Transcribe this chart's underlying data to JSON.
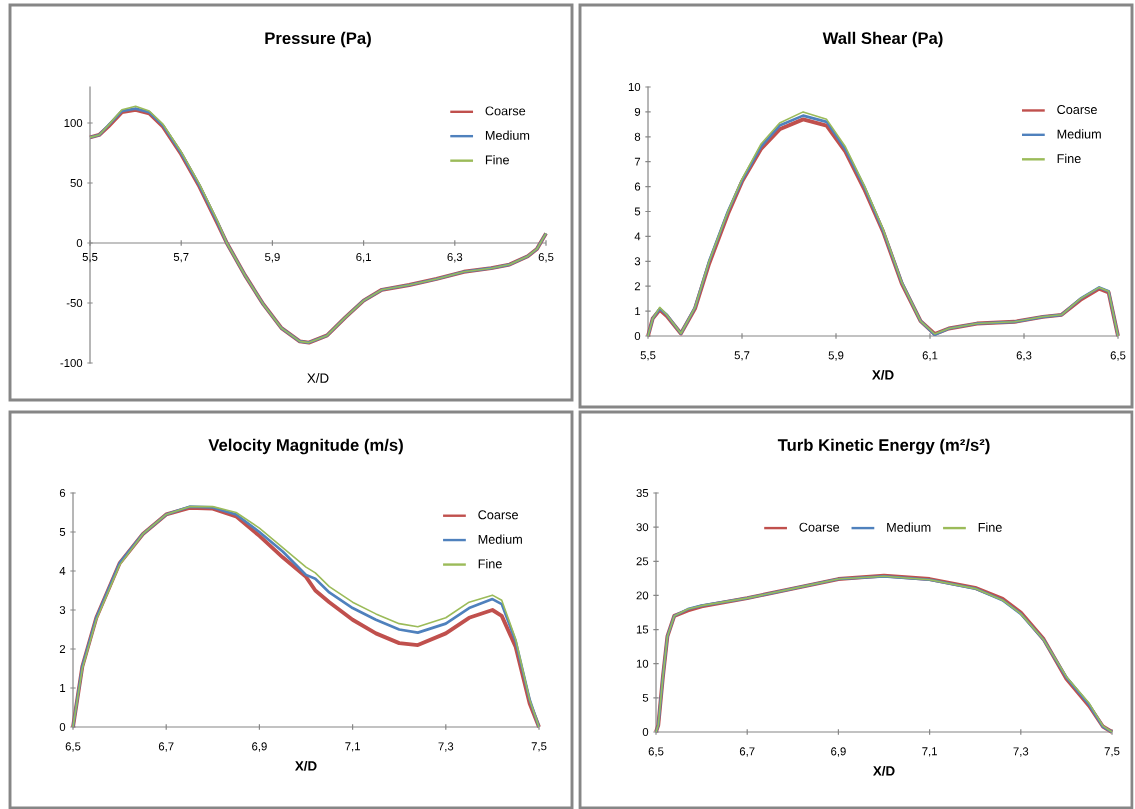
{
  "chart_data": [
    {
      "type": "line",
      "title": "Pressure (Pa)",
      "xlabel": "X/D",
      "legend": "top right",
      "xlim": [
        5.5,
        6.5
      ],
      "ylim": [
        -100,
        130
      ],
      "xticks": [
        {
          "value": 5.5,
          "label": "5,5"
        },
        {
          "value": 5.7,
          "label": "5,7"
        },
        {
          "value": 5.9,
          "label": "5,9"
        },
        {
          "value": 6.1,
          "label": "6,1"
        },
        {
          "value": 6.3,
          "label": "6,3"
        },
        {
          "value": 6.5,
          "label": "6,5"
        }
      ],
      "yticks": [
        -100,
        -50,
        0,
        50,
        100
      ],
      "x": [
        5.5,
        5.52,
        5.54,
        5.57,
        5.6,
        5.63,
        5.66,
        5.7,
        5.74,
        5.78,
        5.8,
        5.84,
        5.88,
        5.92,
        5.96,
        5.98,
        6.02,
        6.06,
        6.1,
        6.14,
        6.2,
        6.26,
        6.32,
        6.38,
        6.42,
        6.46,
        6.48,
        6.5
      ],
      "series": [
        {
          "name": "Coarse",
          "color": "#c0504d",
          "values": [
            88,
            90,
            97,
            109,
            111,
            108,
            97,
            74,
            47,
            16,
            0,
            -27,
            -51,
            -71,
            -82,
            -83,
            -77,
            -62,
            -48,
            -39,
            -35,
            -30,
            -24,
            -21,
            -18,
            -11,
            -5,
            8
          ]
        },
        {
          "name": "Medium",
          "color": "#4f81bd",
          "values": [
            88,
            90,
            98,
            110,
            112,
            109,
            98,
            75,
            48,
            17,
            0,
            -27,
            -51,
            -71,
            -82,
            -83,
            -77,
            -62,
            -48,
            -39,
            -35,
            -30,
            -24,
            -21,
            -18,
            -11,
            -5,
            8
          ]
        },
        {
          "name": "Fine",
          "color": "#9bbb59",
          "values": [
            88,
            90,
            98,
            111,
            114,
            110,
            99,
            76,
            49,
            18,
            0,
            -27,
            -51,
            -71,
            -82,
            -83,
            -77,
            -62,
            -48,
            -39,
            -35,
            -30,
            -24,
            -21,
            -18,
            -11,
            -5,
            8
          ]
        }
      ]
    },
    {
      "type": "line",
      "title": "Wall Shear (Pa)",
      "xlabel": "X/D",
      "legend": "top right",
      "xlim": [
        5.5,
        6.5
      ],
      "ylim": [
        0,
        10
      ],
      "xticks": [
        {
          "value": 5.5,
          "label": "5,5"
        },
        {
          "value": 5.7,
          "label": "5,7"
        },
        {
          "value": 5.9,
          "label": "5,9"
        },
        {
          "value": 6.1,
          "label": "6,1"
        },
        {
          "value": 6.3,
          "label": "6,3"
        },
        {
          "value": 6.5,
          "label": "6,5"
        }
      ],
      "yticks": [
        0,
        1,
        2,
        3,
        4,
        5,
        6,
        7,
        8,
        9,
        10
      ],
      "x": [
        5.5,
        5.51,
        5.525,
        5.54,
        5.57,
        5.6,
        5.63,
        5.67,
        5.7,
        5.74,
        5.78,
        5.83,
        5.88,
        5.92,
        5.96,
        6.0,
        6.04,
        6.08,
        6.11,
        6.14,
        6.2,
        6.28,
        6.34,
        6.38,
        6.42,
        6.46,
        6.48,
        6.5
      ],
      "series": [
        {
          "name": "Coarse",
          "color": "#c0504d",
          "values": [
            0,
            0.7,
            1.05,
            0.8,
            0.1,
            1.1,
            2.9,
            4.9,
            6.2,
            7.5,
            8.3,
            8.7,
            8.45,
            7.4,
            5.9,
            4.2,
            2.1,
            0.6,
            0.08,
            0.3,
            0.5,
            0.57,
            0.77,
            0.85,
            1.45,
            1.9,
            1.75,
            0
          ]
        },
        {
          "name": "Medium",
          "color": "#4f81bd",
          "values": [
            0,
            0.7,
            1.1,
            0.85,
            0.1,
            1.15,
            3.0,
            5.0,
            6.25,
            7.6,
            8.45,
            8.85,
            8.6,
            7.5,
            6.0,
            4.25,
            2.15,
            0.6,
            0.05,
            0.3,
            0.5,
            0.57,
            0.77,
            0.85,
            1.5,
            1.95,
            1.8,
            0
          ]
        },
        {
          "name": "Fine",
          "color": "#9bbb59",
          "values": [
            0,
            0.7,
            1.15,
            0.85,
            0.1,
            1.15,
            3.0,
            5.0,
            6.3,
            7.7,
            8.55,
            9.0,
            8.7,
            7.6,
            6.05,
            4.3,
            2.15,
            0.6,
            0.08,
            0.3,
            0.5,
            0.57,
            0.77,
            0.85,
            1.5,
            1.95,
            1.8,
            0
          ]
        }
      ]
    },
    {
      "type": "line",
      "title": "Velocity Magnitude (m/s)",
      "xlabel": "X/D",
      "legend": "top right",
      "xlim": [
        6.5,
        7.5
      ],
      "ylim": [
        0,
        6
      ],
      "xticks": [
        {
          "value": 6.5,
          "label": "6,5"
        },
        {
          "value": 6.7,
          "label": "6,7"
        },
        {
          "value": 6.9,
          "label": "6,9"
        },
        {
          "value": 7.1,
          "label": "7,1"
        },
        {
          "value": 7.3,
          "label": "7,3"
        },
        {
          "value": 7.5,
          "label": "7,5"
        }
      ],
      "yticks": [
        0,
        1,
        2,
        3,
        4,
        5,
        6
      ],
      "x": [
        6.5,
        6.52,
        6.55,
        6.6,
        6.65,
        6.7,
        6.75,
        6.8,
        6.85,
        6.9,
        6.95,
        7.0,
        7.02,
        7.05,
        7.1,
        7.15,
        7.2,
        7.24,
        7.3,
        7.35,
        7.4,
        7.42,
        7.45,
        7.48,
        7.5
      ],
      "series": [
        {
          "name": "Coarse",
          "color": "#c0504d",
          "values": [
            0,
            1.55,
            2.8,
            4.2,
            4.95,
            5.45,
            5.62,
            5.6,
            5.4,
            4.9,
            4.35,
            3.85,
            3.5,
            3.2,
            2.75,
            2.4,
            2.15,
            2.1,
            2.4,
            2.8,
            3.0,
            2.85,
            2.05,
            0.6,
            0
          ]
        },
        {
          "name": "Medium",
          "color": "#4f81bd",
          "values": [
            0,
            1.55,
            2.8,
            4.2,
            4.95,
            5.45,
            5.65,
            5.63,
            5.45,
            5.0,
            4.5,
            3.9,
            3.8,
            3.45,
            3.05,
            2.75,
            2.5,
            2.42,
            2.65,
            3.05,
            3.28,
            3.15,
            2.2,
            0.7,
            0
          ]
        },
        {
          "name": "Fine",
          "color": "#9bbb59",
          "values": [
            0,
            1.5,
            2.75,
            4.15,
            4.95,
            5.45,
            5.65,
            5.65,
            5.5,
            5.1,
            4.6,
            4.1,
            3.95,
            3.6,
            3.2,
            2.9,
            2.65,
            2.57,
            2.8,
            3.2,
            3.38,
            3.25,
            2.25,
            0.7,
            0
          ]
        }
      ]
    },
    {
      "type": "line",
      "title": "Turb Kinetic Energy (m²/s²)",
      "xlabel": "X/D",
      "legend": "top",
      "xlim": [
        6.5,
        7.5
      ],
      "ylim": [
        0,
        35
      ],
      "xticks": [
        {
          "value": 6.5,
          "label": "6,5"
        },
        {
          "value": 6.7,
          "label": "6,7"
        },
        {
          "value": 6.9,
          "label": "6,9"
        },
        {
          "value": 7.1,
          "label": "7,1"
        },
        {
          "value": 7.3,
          "label": "7,3"
        },
        {
          "value": 7.5,
          "label": "7,5"
        }
      ],
      "yticks": [
        0,
        5,
        10,
        15,
        20,
        25,
        30,
        35
      ],
      "x": [
        6.5,
        6.505,
        6.515,
        6.525,
        6.54,
        6.57,
        6.6,
        6.7,
        6.8,
        6.9,
        7.0,
        7.1,
        7.2,
        7.26,
        7.3,
        7.35,
        7.4,
        7.45,
        7.48,
        7.5
      ],
      "series": [
        {
          "name": "Coarse",
          "color": "#c0504d",
          "values": [
            0,
            1,
            8,
            14,
            17,
            17.8,
            18.4,
            19.6,
            21.0,
            22.4,
            22.9,
            22.4,
            21.1,
            19.5,
            17.5,
            13.6,
            7.8,
            3.8,
            0.8,
            0
          ]
        },
        {
          "name": "Medium",
          "color": "#4f81bd",
          "values": [
            0,
            1,
            8,
            14,
            17,
            18,
            18.5,
            19.6,
            21.0,
            22.4,
            22.8,
            22.3,
            21.0,
            19.3,
            17.3,
            13.5,
            8.0,
            4.0,
            0.8,
            0
          ]
        },
        {
          "name": "Fine",
          "color": "#9bbb59",
          "values": [
            0,
            1,
            8,
            14,
            17,
            18,
            18.5,
            19.6,
            21.0,
            22.4,
            22.8,
            22.3,
            21.0,
            19.3,
            17.3,
            13.5,
            8.1,
            4.2,
            0.9,
            0
          ]
        }
      ]
    }
  ]
}
